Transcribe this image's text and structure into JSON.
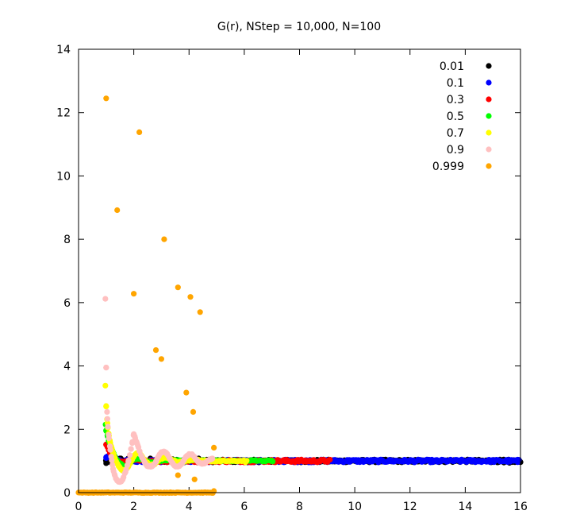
{
  "chart_data": {
    "type": "scatter",
    "title": "G(r), NStep = 10,000, N=100",
    "xlabel": "",
    "ylabel": "",
    "xlim": [
      0,
      16
    ],
    "ylim": [
      0,
      14
    ],
    "xticks": [
      "0",
      "2",
      "4",
      "6",
      "8",
      "10",
      "12",
      "14",
      "16"
    ],
    "yticks": [
      "0",
      "2",
      "4",
      "6",
      "8",
      "10",
      "12",
      "14"
    ],
    "grid": false,
    "legend_position": "top-right",
    "series": [
      {
        "name": "0.01",
        "color": "#000000",
        "x_range": [
          0.99,
          16.0
        ],
        "baseline": 1.0,
        "pattern": "flat",
        "points": [
          [
            1.0,
            0.93
          ],
          [
            1.03,
            1.06
          ],
          [
            1.05,
            1.1
          ],
          [
            1.1,
            1.12
          ],
          [
            1.15,
            0.96
          ],
          [
            1.2,
            1.08
          ],
          [
            1.25,
            0.94
          ],
          [
            1.3,
            1.1
          ],
          [
            1.35,
            1.05
          ],
          [
            1.4,
            0.96
          ],
          [
            1.5,
            1.08
          ],
          [
            1.6,
            1.02
          ],
          [
            1.7,
            0.98
          ],
          [
            1.8,
            1.06
          ],
          [
            1.9,
            1.12
          ],
          [
            2.0,
            1.02
          ],
          [
            2.2,
            1.05
          ],
          [
            2.4,
            0.98
          ],
          [
            2.6,
            1.08
          ],
          [
            2.8,
            1.0
          ],
          [
            3.0,
            1.04
          ],
          [
            3.2,
            0.98
          ],
          [
            3.4,
            1.06
          ],
          [
            3.6,
            1.0
          ],
          [
            3.8,
            1.02
          ],
          [
            4.0,
            1.06
          ],
          [
            4.2,
            1.1
          ],
          [
            4.35,
            1.08
          ],
          [
            4.5,
            0.98
          ],
          [
            4.7,
            1.04
          ],
          [
            5.0,
            0.99
          ],
          [
            15.4,
            0.95
          ],
          [
            15.6,
            0.94
          ],
          [
            15.8,
            0.96
          ],
          [
            16.0,
            0.96
          ]
        ]
      },
      {
        "name": "0.1",
        "color": "#0000ff",
        "x_range": [
          1.0,
          15.95
        ],
        "baseline": 1.0,
        "pattern": "flat",
        "points": [
          [
            1.0,
            1.12
          ],
          [
            1.1,
            1.15
          ],
          [
            1.2,
            1.2
          ],
          [
            1.3,
            1.1
          ],
          [
            1.4,
            1.05
          ],
          [
            1.5,
            1.0
          ],
          [
            1.6,
            0.96
          ],
          [
            1.8,
            1.05
          ],
          [
            9.2,
            1.02
          ],
          [
            9.8,
            1.03
          ],
          [
            10.3,
            1.01
          ],
          [
            11.0,
            1.02
          ],
          [
            12.0,
            0.99
          ],
          [
            12.5,
            1.01
          ],
          [
            13.0,
            0.97
          ],
          [
            13.8,
            1.02
          ],
          [
            14.5,
            0.98
          ],
          [
            15.0,
            1.0
          ],
          [
            15.5,
            0.98
          ],
          [
            15.9,
            0.96
          ]
        ]
      },
      {
        "name": "0.3",
        "color": "#ff0000",
        "x_range": [
          1.0,
          9.1
        ],
        "baseline": 1.0,
        "pattern": "flat",
        "points": [
          [
            1.0,
            1.52
          ],
          [
            1.05,
            1.45
          ],
          [
            1.1,
            1.35
          ],
          [
            1.15,
            1.25
          ],
          [
            1.2,
            1.18
          ],
          [
            1.3,
            1.1
          ],
          [
            1.4,
            1.02
          ],
          [
            1.5,
            0.98
          ],
          [
            1.6,
            0.95
          ],
          [
            1.8,
            1.02
          ],
          [
            7.1,
            1.0
          ],
          [
            7.5,
            0.99
          ],
          [
            8.0,
            1.0
          ],
          [
            8.5,
            0.98
          ],
          [
            9.0,
            1.0
          ]
        ]
      },
      {
        "name": "0.5",
        "color": "#00ff00",
        "x_range": [
          1.0,
          7.05
        ],
        "baseline": 1.0,
        "pattern": "oscillation",
        "points": [
          [
            0.98,
            2.15
          ],
          [
            1.0,
            1.95
          ],
          [
            1.05,
            1.78
          ],
          [
            1.1,
            1.62
          ],
          [
            1.15,
            1.5
          ],
          [
            1.2,
            1.38
          ],
          [
            1.25,
            1.27
          ],
          [
            1.3,
            1.17
          ],
          [
            1.35,
            1.08
          ],
          [
            1.4,
            1.01
          ],
          [
            1.5,
            0.92
          ],
          [
            1.6,
            0.86
          ],
          [
            1.7,
            0.84
          ],
          [
            1.8,
            0.88
          ],
          [
            1.9,
            0.96
          ],
          [
            2.0,
            1.04
          ],
          [
            2.1,
            1.08
          ],
          [
            2.2,
            1.08
          ],
          [
            2.3,
            1.05
          ],
          [
            2.4,
            1.0
          ],
          [
            2.6,
            0.96
          ],
          [
            2.8,
            0.98
          ],
          [
            3.0,
            1.02
          ],
          [
            3.2,
            1.02
          ],
          [
            6.1,
            1.0
          ],
          [
            6.4,
            1.02
          ],
          [
            6.7,
            1.0
          ],
          [
            7.0,
            1.01
          ]
        ]
      },
      {
        "name": "0.7",
        "color": "#ffff00",
        "x_range": [
          1.0,
          6.1
        ],
        "baseline": 1.0,
        "pattern": "oscillation",
        "points": [
          [
            0.97,
            3.38
          ],
          [
            1.0,
            2.72
          ],
          [
            1.03,
            2.32
          ],
          [
            1.06,
            2.05
          ],
          [
            1.1,
            1.8
          ],
          [
            1.15,
            1.58
          ],
          [
            1.2,
            1.4
          ],
          [
            1.25,
            1.25
          ],
          [
            1.3,
            1.12
          ],
          [
            1.35,
            1.0
          ],
          [
            1.4,
            0.92
          ],
          [
            1.45,
            0.85
          ],
          [
            1.5,
            0.78
          ],
          [
            1.55,
            0.73
          ],
          [
            1.6,
            0.7
          ],
          [
            1.7,
            0.72
          ],
          [
            1.8,
            0.82
          ],
          [
            1.9,
            0.98
          ],
          [
            2.0,
            1.14
          ],
          [
            2.1,
            1.24
          ],
          [
            2.2,
            1.24
          ],
          [
            2.3,
            1.14
          ],
          [
            2.4,
            1.02
          ],
          [
            2.5,
            0.93
          ],
          [
            2.6,
            0.88
          ],
          [
            2.7,
            0.88
          ],
          [
            2.8,
            0.94
          ],
          [
            2.9,
            1.02
          ],
          [
            3.0,
            1.08
          ],
          [
            3.2,
            1.1
          ],
          [
            3.4,
            1.03
          ],
          [
            3.6,
            0.97
          ],
          [
            3.8,
            0.98
          ],
          [
            4.0,
            1.03
          ],
          [
            4.2,
            1.05
          ],
          [
            4.4,
            1.01
          ],
          [
            5.0,
            0.99
          ],
          [
            5.6,
            1.0
          ],
          [
            6.0,
            1.0
          ]
        ]
      },
      {
        "name": "0.9",
        "color": "#ffc0c0",
        "x_range": [
          1.0,
          4.85
        ],
        "baseline": 1.0,
        "pattern": "oscillation",
        "points": [
          [
            0.97,
            6.12
          ],
          [
            1.0,
            3.95
          ],
          [
            1.03,
            2.55
          ],
          [
            1.06,
            2.08
          ],
          [
            1.1,
            1.72
          ],
          [
            1.15,
            1.35
          ],
          [
            1.2,
            1.02
          ],
          [
            1.25,
            0.75
          ],
          [
            1.3,
            0.58
          ],
          [
            1.35,
            0.45
          ],
          [
            1.4,
            0.38
          ],
          [
            1.45,
            0.34
          ],
          [
            1.5,
            0.34
          ],
          [
            1.55,
            0.36
          ],
          [
            1.6,
            0.42
          ],
          [
            1.7,
            0.65
          ],
          [
            1.8,
            0.98
          ],
          [
            1.9,
            1.38
          ],
          [
            1.95,
            1.6
          ],
          [
            2.0,
            1.85
          ],
          [
            2.05,
            1.72
          ],
          [
            2.1,
            1.6
          ],
          [
            2.15,
            1.48
          ],
          [
            2.2,
            1.32
          ],
          [
            2.3,
            1.1
          ],
          [
            2.4,
            0.94
          ],
          [
            2.5,
            0.84
          ],
          [
            2.6,
            0.82
          ],
          [
            2.7,
            0.86
          ],
          [
            2.8,
            0.98
          ],
          [
            2.9,
            1.15
          ],
          [
            3.0,
            1.28
          ],
          [
            3.1,
            1.3
          ],
          [
            3.2,
            1.22
          ],
          [
            3.3,
            1.08
          ],
          [
            3.4,
            0.94
          ],
          [
            3.5,
            0.84
          ],
          [
            3.6,
            0.82
          ],
          [
            3.7,
            0.88
          ],
          [
            3.8,
            1.0
          ],
          [
            3.9,
            1.14
          ],
          [
            4.0,
            1.22
          ],
          [
            4.1,
            1.2
          ],
          [
            4.2,
            1.12
          ],
          [
            4.3,
            1.0
          ],
          [
            4.4,
            0.93
          ],
          [
            4.5,
            0.91
          ],
          [
            4.6,
            0.95
          ],
          [
            4.7,
            1.02
          ],
          [
            4.8,
            1.07
          ],
          [
            4.85,
            1.08
          ]
        ]
      },
      {
        "name": "0.999",
        "color": "#ffa500",
        "x_range": [
          0.0,
          4.9
        ],
        "baseline": 0.0,
        "pattern": "spikes",
        "points": [
          [
            1.0,
            12.45
          ],
          [
            1.4,
            8.92
          ],
          [
            2.0,
            6.28
          ],
          [
            2.2,
            11.38
          ],
          [
            2.8,
            4.5
          ],
          [
            3.0,
            4.22
          ],
          [
            3.1,
            8.0
          ],
          [
            3.6,
            6.48
          ],
          [
            3.6,
            0.55
          ],
          [
            3.9,
            3.16
          ],
          [
            4.05,
            6.18
          ],
          [
            4.15,
            2.55
          ],
          [
            4.2,
            0.42
          ],
          [
            4.4,
            5.7
          ],
          [
            4.9,
            1.42
          ],
          [
            4.9,
            0.05
          ]
        ]
      }
    ]
  }
}
